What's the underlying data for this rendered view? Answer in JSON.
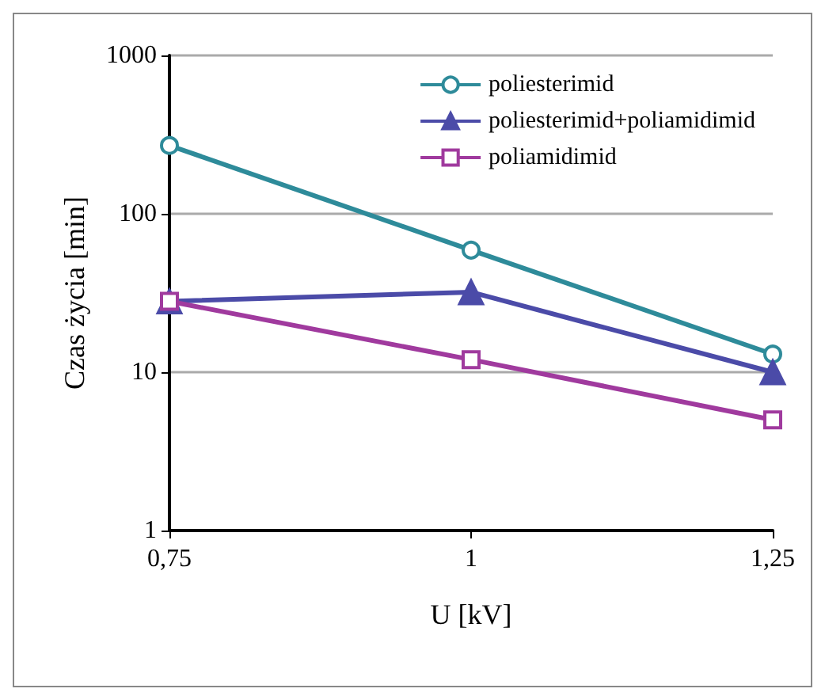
{
  "chart_data": {
    "type": "line",
    "xlabel": "U [kV]",
    "ylabel": "Czas życia [min]",
    "x": [
      0.75,
      1,
      1.25
    ],
    "xlim": [
      0.75,
      1.25
    ],
    "xticks": [
      {
        "value": 0.75,
        "label": "0,75"
      },
      1,
      {
        "value": 1.25,
        "label": "1,25"
      }
    ],
    "ylim": [
      1,
      1000
    ],
    "yticks": [
      1,
      10,
      100,
      1000
    ],
    "log": "y",
    "grid": "y",
    "legend": "top right",
    "line_style": "solid",
    "series": [
      {
        "name": "poliesterimid",
        "color": "#2e8b9a",
        "marker": "circle",
        "values": [
          270,
          59,
          13
        ]
      },
      {
        "name": "poliesterimid+poliamidimid",
        "color": "#4b4ba8",
        "marker": "triangle",
        "values": [
          28,
          32,
          10
        ]
      },
      {
        "name": "poliamidimid",
        "color": "#a03a9e",
        "marker": "square",
        "values": [
          28,
          12,
          5
        ]
      }
    ]
  }
}
